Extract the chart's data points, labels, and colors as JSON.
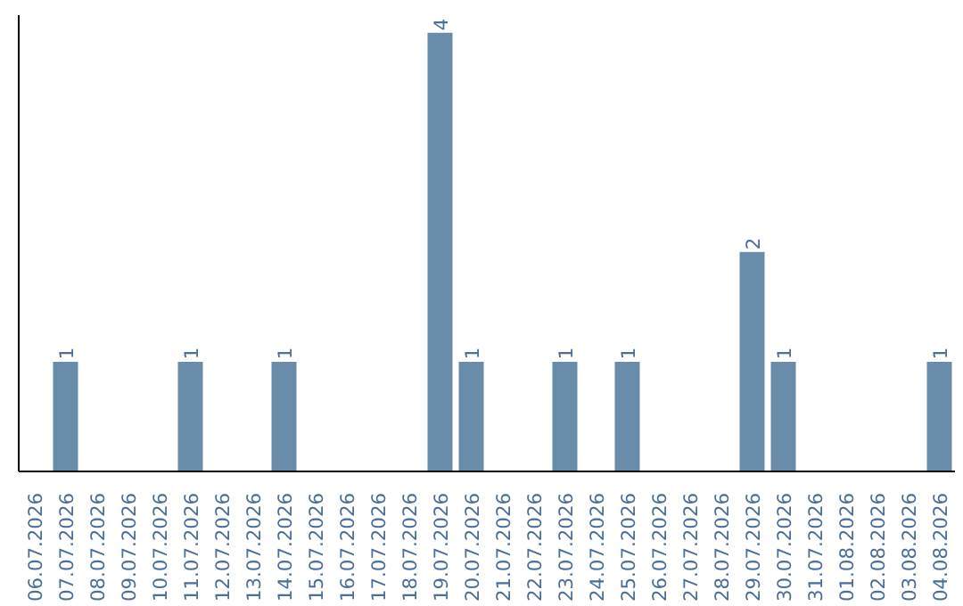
{
  "chart_data": {
    "type": "bar",
    "categories": [
      "06.07.2026",
      "07.07.2026",
      "08.07.2026",
      "09.07.2026",
      "10.07.2026",
      "11.07.2026",
      "12.07.2026",
      "13.07.2026",
      "14.07.2026",
      "15.07.2026",
      "16.07.2026",
      "17.07.2026",
      "18.07.2026",
      "19.07.2026",
      "20.07.2026",
      "21.07.2026",
      "22.07.2026",
      "23.07.2026",
      "24.07.2026",
      "25.07.2026",
      "26.07.2026",
      "27.07.2026",
      "28.07.2026",
      "29.07.2026",
      "30.07.2026",
      "31.07.2026",
      "01.08.2026",
      "02.08.2026",
      "03.08.2026",
      "04.08.2026"
    ],
    "values": [
      0,
      1,
      0,
      0,
      0,
      1,
      0,
      0,
      1,
      0,
      0,
      0,
      0,
      4,
      1,
      0,
      0,
      1,
      0,
      1,
      0,
      0,
      0,
      2,
      1,
      0,
      0,
      0,
      0,
      1
    ],
    "value_labels": [
      null,
      "1",
      null,
      null,
      null,
      "1",
      null,
      null,
      "1",
      null,
      null,
      null,
      null,
      "4",
      "1",
      null,
      null,
      "1",
      null,
      "1",
      null,
      null,
      null,
      "2",
      "1",
      null,
      null,
      null,
      null,
      "1"
    ],
    "color": "#6a8cab",
    "tick_labels": "x",
    "grid": false
  }
}
